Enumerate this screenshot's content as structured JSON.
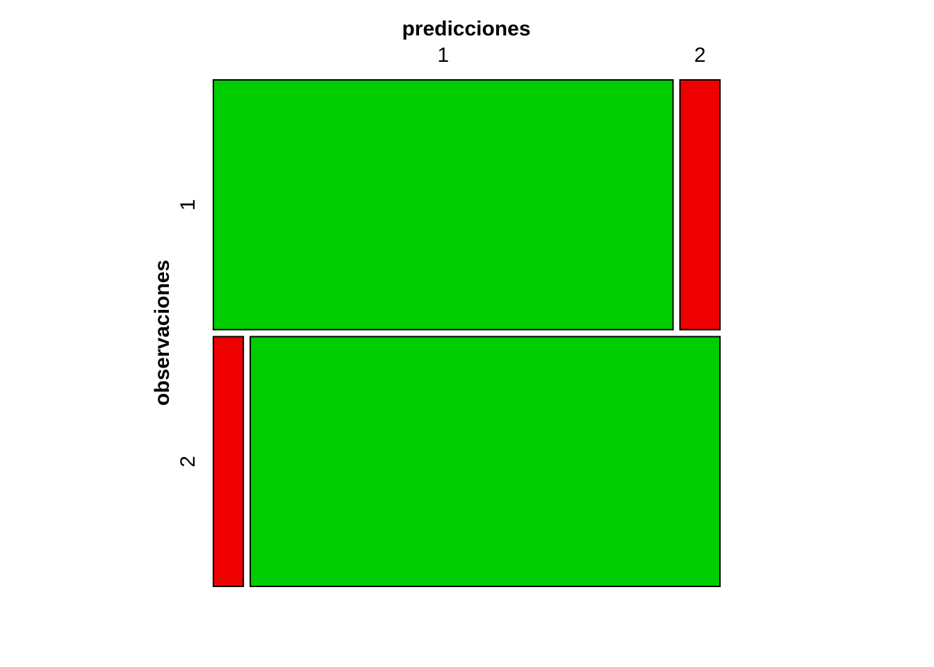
{
  "chart_data": {
    "type": "mosaic",
    "xlabel": "predicciones",
    "ylabel": "observaciones",
    "row_categories": [
      "1",
      "2"
    ],
    "col_categories": [
      "1",
      "2"
    ],
    "row_proportions": [
      0.5,
      0.5
    ],
    "cells": [
      {
        "observacion": "1",
        "prediccion": "1",
        "proportion_within_row": 0.92,
        "color": "#00CD00"
      },
      {
        "observacion": "1",
        "prediccion": "2",
        "proportion_within_row": 0.08,
        "color": "#EE0000"
      },
      {
        "observacion": "2",
        "prediccion": "1",
        "proportion_within_row": 0.06,
        "color": "#EE0000"
      },
      {
        "observacion": "2",
        "prediccion": "2",
        "proportion_within_row": 0.94,
        "color": "#00CD00"
      }
    ]
  },
  "colors": {
    "correct": "#00CD00",
    "incorrect": "#EE0000",
    "border": "#000000",
    "background": "#FFFFFF"
  }
}
